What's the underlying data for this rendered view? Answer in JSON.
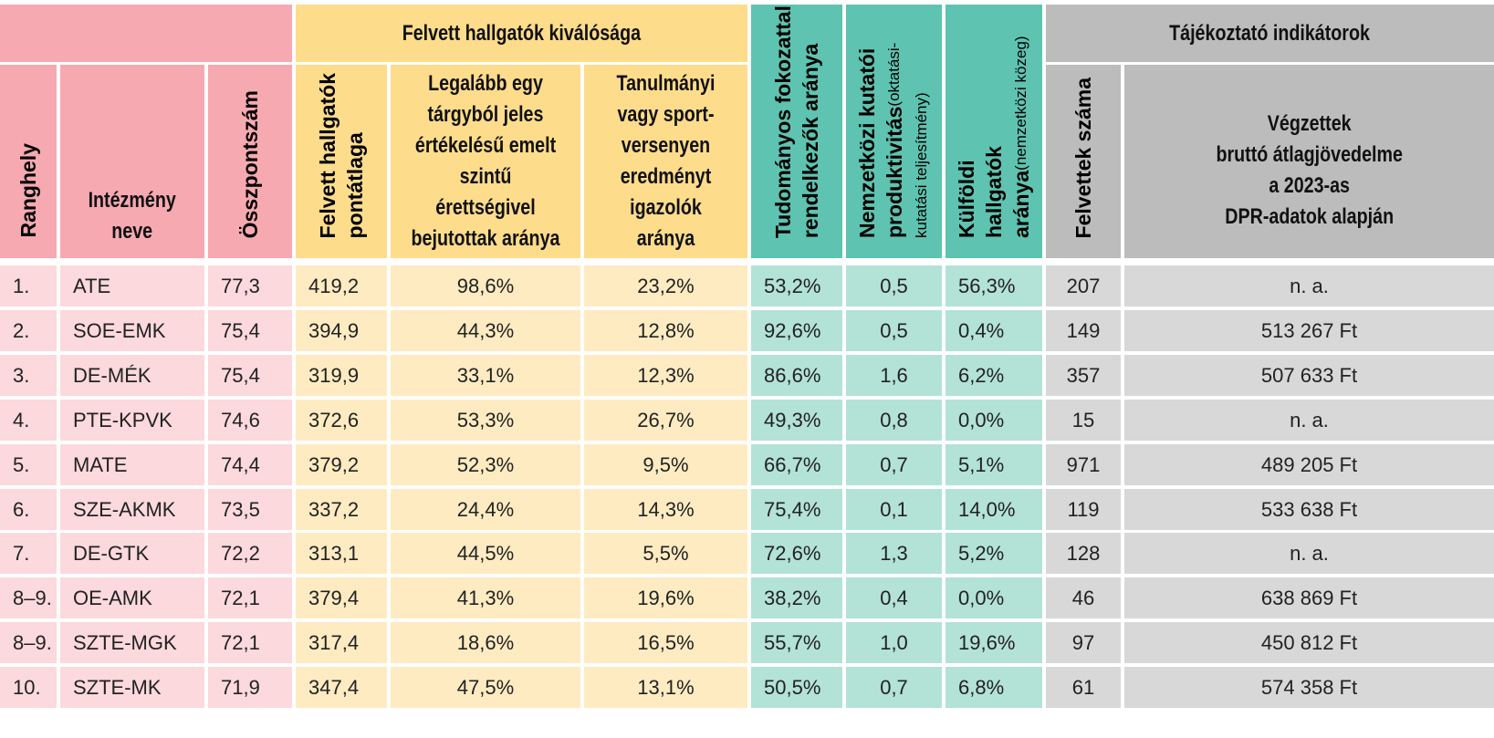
{
  "groups": {
    "selection": "Felvett hallgatók kiválósága",
    "info": "Tájékoztató indikátorok"
  },
  "headers": {
    "rank": "Ranghely",
    "name": "Intézmény\nneve",
    "total": "Összpontszám",
    "avg": "Felvett hallgatók\npontátlaga",
    "emelt": "Legalább egy\ntárgyból jeles\nértékelésű emelt\nszintű érettségivel\nbejutottak aránya",
    "verseny": "Tanulmányi\nvagy sport-\nversenyen\neredményt\nigazolók aránya",
    "doktor": "Tudományos fokozattal\nrendelkezők aránya",
    "kutatas_main": "Nemzetközi kutatói\nproduktivitás",
    "kutatas_sub": "(oktatási-kutatási teljesítmény)",
    "kulfoldi_main": "Külföldi\nhallgatók aránya",
    "kulfoldi_sub": "(nemzetközi közeg)",
    "felvettek": "Felvettek száma",
    "jovedelem": "Végzettek\nbruttó átlagjövedelme\na 2023-as\nDPR-adatok alapján"
  },
  "rows": [
    {
      "rank": "1.",
      "name": "ATE",
      "total": "77,3",
      "avg": "419,2",
      "emelt": "98,6%",
      "verseny": "23,2%",
      "doktor": "53,2%",
      "kutatas": "0,5",
      "kulfoldi": "56,3%",
      "felvettek": "207",
      "jovedelem": "n. a."
    },
    {
      "rank": "2.",
      "name": "SOE-EMK",
      "total": "75,4",
      "avg": "394,9",
      "emelt": "44,3%",
      "verseny": "12,8%",
      "doktor": "92,6%",
      "kutatas": "0,5",
      "kulfoldi": "0,4%",
      "felvettek": "149",
      "jovedelem": "513 267 Ft"
    },
    {
      "rank": "3.",
      "name": "DE-MÉK",
      "total": "75,4",
      "avg": "319,9",
      "emelt": "33,1%",
      "verseny": "12,3%",
      "doktor": "86,6%",
      "kutatas": "1,6",
      "kulfoldi": "6,2%",
      "felvettek": "357",
      "jovedelem": "507 633 Ft"
    },
    {
      "rank": "4.",
      "name": "PTE-KPVK",
      "total": "74,6",
      "avg": "372,6",
      "emelt": "53,3%",
      "verseny": "26,7%",
      "doktor": "49,3%",
      "kutatas": "0,8",
      "kulfoldi": "0,0%",
      "felvettek": "15",
      "jovedelem": "n. a."
    },
    {
      "rank": "5.",
      "name": "MATE",
      "total": "74,4",
      "avg": "379,2",
      "emelt": "52,3%",
      "verseny": "9,5%",
      "doktor": "66,7%",
      "kutatas": "0,7",
      "kulfoldi": "5,1%",
      "felvettek": "971",
      "jovedelem": "489 205 Ft"
    },
    {
      "rank": "6.",
      "name": "SZE-AKMK",
      "total": "73,5",
      "avg": "337,2",
      "emelt": "24,4%",
      "verseny": "14,3%",
      "doktor": "75,4%",
      "kutatas": "0,1",
      "kulfoldi": "14,0%",
      "felvettek": "119",
      "jovedelem": "533 638 Ft"
    },
    {
      "rank": "7.",
      "name": "DE-GTK",
      "total": "72,2",
      "avg": "313,1",
      "emelt": "44,5%",
      "verseny": "5,5%",
      "doktor": "72,6%",
      "kutatas": "1,3",
      "kulfoldi": "5,2%",
      "felvettek": "128",
      "jovedelem": "n. a."
    },
    {
      "rank": "8–9.",
      "name": "OE-AMK",
      "total": "72,1",
      "avg": "379,4",
      "emelt": "41,3%",
      "verseny": "19,6%",
      "doktor": "38,2%",
      "kutatas": "0,4",
      "kulfoldi": "0,0%",
      "felvettek": "46",
      "jovedelem": "638 869 Ft"
    },
    {
      "rank": "8–9.",
      "name": "SZTE-MGK",
      "total": "72,1",
      "avg": "317,4",
      "emelt": "18,6%",
      "verseny": "16,5%",
      "doktor": "55,7%",
      "kutatas": "1,0",
      "kulfoldi": "19,6%",
      "felvettek": "97",
      "jovedelem": "450 812 Ft"
    },
    {
      "rank": "10.",
      "name": "SZTE-MK",
      "total": "71,9",
      "avg": "347,4",
      "emelt": "47,5%",
      "verseny": "13,1%",
      "doktor": "50,5%",
      "kutatas": "0,7",
      "kulfoldi": "6,8%",
      "felvettek": "61",
      "jovedelem": "574 358 Ft"
    }
  ]
}
